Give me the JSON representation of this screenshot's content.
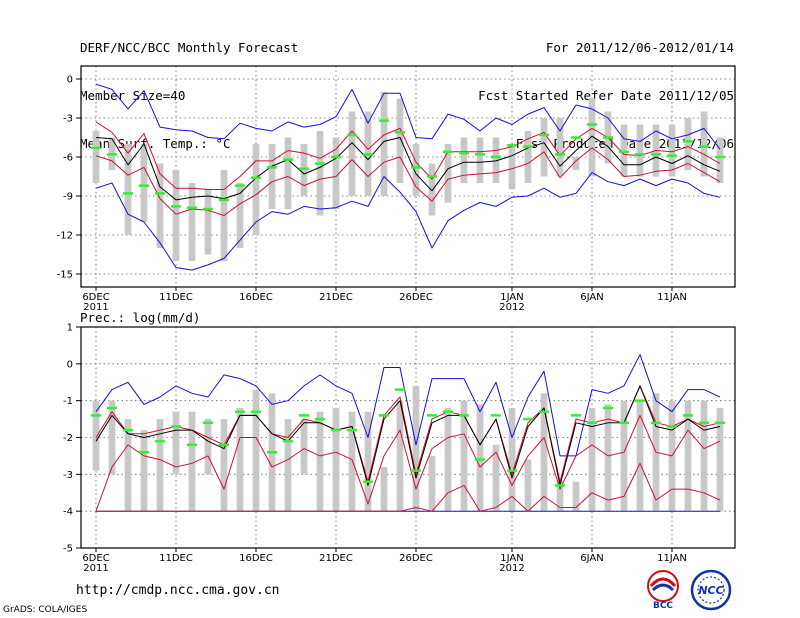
{
  "header": {
    "title": "DERF/NCC/BCC Monthly Forecast",
    "member": "Member Size=40",
    "forecast_period": "For 2011/12/06-2012/01/14",
    "fcst_started": "Fcst Started Refer Date 2011/12/05",
    "fcst_produced": "Fcst Produced Date 2011/12/06"
  },
  "footer": {
    "url": "http://cmdp.ncc.cma.gov.cn",
    "credit": "GrADS: COLA/IGES",
    "logo_bcc": "BCC",
    "logo_ncc": "NCC"
  },
  "colors": {
    "box": "#c8c8c8",
    "median": "#33ee33",
    "mean": "#000000",
    "spread": "#cc1133",
    "envelope": "#1111dd",
    "grid": "#666666"
  },
  "chart_data": [
    {
      "type": "box",
      "title": "Mean Surf. Temp.: °C",
      "xlabel": "",
      "ylabel": "",
      "ylim": [
        -16,
        1
      ],
      "yticks": [
        0,
        -3,
        -6,
        -9,
        -12,
        -15
      ],
      "xtick_labels": [
        {
          "day": 0,
          "line1": "6DEC",
          "line2": "2011"
        },
        {
          "day": 5,
          "line1": "11DEC",
          "line2": ""
        },
        {
          "day": 10,
          "line1": "16DEC",
          "line2": ""
        },
        {
          "day": 15,
          "line1": "21DEC",
          "line2": ""
        },
        {
          "day": 20,
          "line1": "26DEC",
          "line2": ""
        },
        {
          "day": 26,
          "line1": "1JAN",
          "line2": "2012"
        },
        {
          "day": 31,
          "line1": "6JAN",
          "line2": ""
        },
        {
          "day": 36,
          "line1": "11JAN",
          "line2": ""
        }
      ],
      "box_low": [
        -8.0,
        -7.0,
        -12.0,
        -11.0,
        -13.0,
        -14.0,
        -14.0,
        -13.5,
        -14.0,
        -13.0,
        -12.0,
        -10.0,
        -10.0,
        -9.0,
        -10.5,
        -10.0,
        -9.0,
        -9.0,
        -9.0,
        -8.0,
        -9.0,
        -10.5,
        -9.5,
        -8.0,
        -8.0,
        -8.0,
        -8.5,
        -8.0,
        -7.5,
        -7.5,
        -7.0,
        -7.5,
        -6.5,
        -7.5,
        -7.5,
        -7.5,
        -7.5,
        -7.0,
        -7.5,
        -8.0
      ],
      "box_high": [
        -4.0,
        -4.5,
        -5.0,
        -5.0,
        -6.5,
        -7.0,
        -8.0,
        -8.5,
        -7.0,
        -8.0,
        -5.0,
        -5.0,
        -4.5,
        -5.0,
        -4.0,
        -4.5,
        -2.5,
        -2.5,
        -1.0,
        -1.5,
        -5.0,
        -6.5,
        -5.0,
        -4.5,
        -4.5,
        -4.5,
        -5.0,
        -4.0,
        -3.0,
        -3.0,
        -6.0,
        -1.5,
        -2.5,
        -3.5,
        -3.5,
        -3.5,
        -3.5,
        -3.0,
        -2.5,
        -4.5
      ],
      "median": [
        -5.3,
        -5.8,
        -8.8,
        -8.2,
        -8.8,
        -9.8,
        -9.9,
        -10.0,
        -9.3,
        -8.2,
        -7.6,
        -6.8,
        -6.2,
        -6.9,
        -6.5,
        -6.0,
        -4.3,
        -5.8,
        -3.2,
        -4.1,
        -6.8,
        -7.5,
        -5.6,
        -5.7,
        -5.8,
        -6.0,
        -5.1,
        -5.2,
        -4.3,
        -5.8,
        -4.5,
        -3.5,
        -4.5,
        -5.6,
        -5.8,
        -5.8,
        -5.9,
        -4.8,
        -5.2,
        -6.0
      ],
      "mean": [
        -4.5,
        -4.6,
        -6.6,
        -5.0,
        -8.3,
        -9.3,
        -9.1,
        -9.0,
        -9.2,
        -8.8,
        -7.6,
        -6.7,
        -6.2,
        -7.3,
        -6.8,
        -6.1,
        -4.9,
        -6.2,
        -4.8,
        -4.5,
        -7.3,
        -8.6,
        -6.9,
        -6.4,
        -6.4,
        -6.3,
        -5.9,
        -5.3,
        -4.9,
        -6.7,
        -5.5,
        -4.4,
        -5.2,
        -6.6,
        -6.6,
        -6.0,
        -6.5,
        -5.9,
        -6.6,
        -7.1
      ],
      "spread_upper": [
        -3.3,
        -4.1,
        -5.7,
        -4.2,
        -7.3,
        -8.4,
        -8.4,
        -8.5,
        -8.5,
        -7.5,
        -6.3,
        -6.3,
        -5.5,
        -5.7,
        -6.1,
        -5.4,
        -4.0,
        -5.4,
        -4.3,
        -3.8,
        -6.4,
        -7.7,
        -5.6,
        -5.6,
        -5.6,
        -5.5,
        -5.2,
        -4.6,
        -4.1,
        -5.9,
        -4.6,
        -3.8,
        -4.5,
        -5.8,
        -5.9,
        -5.5,
        -5.6,
        -5.2,
        -5.8,
        -6.5
      ],
      "spread_lower": [
        -5.9,
        -6.3,
        -7.4,
        -6.8,
        -9.2,
        -10.4,
        -10.0,
        -10.1,
        -10.5,
        -9.6,
        -8.9,
        -7.9,
        -7.5,
        -8.2,
        -7.7,
        -7.5,
        -6.2,
        -7.5,
        -6.4,
        -6.0,
        -8.3,
        -9.4,
        -7.7,
        -7.4,
        -7.3,
        -7.2,
        -6.9,
        -6.5,
        -5.6,
        -7.6,
        -6.3,
        -5.3,
        -6.2,
        -7.5,
        -7.4,
        -7.1,
        -7.0,
        -6.5,
        -7.2,
        -7.9
      ],
      "envelope_upper": [
        -0.4,
        -0.8,
        -2.3,
        -0.9,
        -3.7,
        -3.9,
        -4.0,
        -4.5,
        -4.6,
        -3.4,
        -3.8,
        -4.0,
        -3.3,
        -3.7,
        -3.5,
        -2.9,
        -0.8,
        -3.4,
        -1.1,
        -1.1,
        -4.5,
        -4.6,
        -2.7,
        -3.1,
        -4.0,
        -3.0,
        -3.5,
        -2.7,
        -2.2,
        -4.0,
        -2.0,
        -2.3,
        -3.0,
        -4.6,
        -4.8,
        -4.0,
        -4.6,
        -4.3,
        -3.8,
        -5.4
      ],
      "envelope_lower": [
        -8.4,
        -8.0,
        -10.4,
        -11.0,
        -12.6,
        -14.5,
        -14.7,
        -14.3,
        -13.8,
        -12.4,
        -11.0,
        -10.2,
        -10.4,
        -9.8,
        -10.0,
        -9.9,
        -9.4,
        -9.8,
        -7.5,
        -8.7,
        -10.2,
        -13.0,
        -10.9,
        -10.1,
        -9.5,
        -9.8,
        -9.1,
        -9.0,
        -8.4,
        -9.1,
        -8.8,
        -7.2,
        -7.9,
        -8.2,
        -7.7,
        -8.2,
        -7.7,
        -8.0,
        -8.8,
        -9.1
      ]
    },
    {
      "type": "box",
      "title": "Prec.: log(mm/d)",
      "xlabel": "",
      "ylabel": "",
      "ylim": [
        -5,
        1
      ],
      "yticks": [
        1,
        0,
        -1,
        -2,
        -3,
        -4,
        -5
      ],
      "xtick_labels": [
        {
          "day": 0,
          "line1": "6DEC",
          "line2": "2011"
        },
        {
          "day": 5,
          "line1": "11DEC",
          "line2": ""
        },
        {
          "day": 10,
          "line1": "16DEC",
          "line2": ""
        },
        {
          "day": 15,
          "line1": "21DEC",
          "line2": ""
        },
        {
          "day": 20,
          "line1": "26DEC",
          "line2": ""
        },
        {
          "day": 26,
          "line1": "1JAN",
          "line2": "2012"
        },
        {
          "day": 31,
          "line1": "6JAN",
          "line2": ""
        },
        {
          "day": 36,
          "line1": "11JAN",
          "line2": ""
        }
      ],
      "box_low": [
        -2.9,
        -3.0,
        -4.0,
        -4.0,
        -4.0,
        -3.0,
        -4.0,
        -3.0,
        -4.0,
        -4.0,
        -4.0,
        -4.0,
        -4.0,
        -3.0,
        -4.0,
        -4.0,
        -4.0,
        -4.0,
        -4.0,
        -4.0,
        -4.0,
        -4.0,
        -4.0,
        -4.0,
        -4.0,
        -4.0,
        -4.0,
        -4.0,
        -4.0,
        -4.0,
        -4.0,
        -4.0,
        -4.0,
        -4.0,
        -4.0,
        -4.0,
        -4.0,
        -4.0,
        -4.0,
        -4.0
      ],
      "box_high": [
        -1.0,
        -1.0,
        -1.5,
        -1.8,
        -1.5,
        -1.3,
        -1.3,
        -1.5,
        -1.5,
        -1.2,
        -0.7,
        -0.8,
        -1.5,
        -1.5,
        -1.3,
        -1.2,
        -1.3,
        -1.3,
        -2.8,
        -1.0,
        -0.6,
        -2.5,
        -1.2,
        -1.0,
        -1.1,
        -2.2,
        -1.2,
        -2.6,
        -0.8,
        -3.2,
        -3.2,
        -1.2,
        -1.1,
        -1.0,
        -1.0,
        -0.8,
        -1.0,
        -1.0,
        -1.0,
        -1.2
      ],
      "median": [
        -1.4,
        -1.2,
        -1.8,
        -2.4,
        -2.1,
        -1.7,
        -2.2,
        -1.6,
        -2.2,
        -1.3,
        -1.3,
        -2.4,
        -2.1,
        -1.4,
        -1.5,
        -1.8,
        -1.8,
        -3.2,
        -1.4,
        -0.7,
        -2.9,
        -1.4,
        -1.3,
        -1.4,
        -2.6,
        -1.4,
        -2.9,
        -1.5,
        -1.3,
        -3.3,
        -1.4,
        -1.6,
        -1.2,
        -1.6,
        -1.0,
        -1.6,
        -1.7,
        -1.4,
        -1.6,
        -1.6
      ],
      "mean": [
        -2.1,
        -1.4,
        -1.9,
        -2.0,
        -1.9,
        -1.8,
        -1.8,
        -2.1,
        -2.3,
        -1.4,
        -1.4,
        -1.9,
        -2.1,
        -1.6,
        -1.6,
        -1.8,
        -1.7,
        -3.3,
        -1.5,
        -1.0,
        -3.1,
        -1.6,
        -1.4,
        -1.4,
        -2.2,
        -1.5,
        -3.1,
        -1.7,
        -1.2,
        -3.3,
        -1.6,
        -1.7,
        -1.6,
        -1.6,
        -0.6,
        -1.7,
        -1.8,
        -1.5,
        -1.8,
        -1.7
      ],
      "spread_upper": [
        -2.0,
        -1.3,
        -1.9,
        -1.9,
        -1.8,
        -1.7,
        -1.8,
        -2.0,
        -2.2,
        -1.4,
        -1.4,
        -1.9,
        -2.0,
        -1.5,
        -1.6,
        -1.8,
        -1.7,
        -3.2,
        -1.4,
        -0.9,
        -3.0,
        -1.5,
        -1.3,
        -1.4,
        -2.2,
        -1.5,
        -3.0,
        -1.6,
        -1.2,
        -3.2,
        -1.5,
        -1.6,
        -1.5,
        -1.6,
        -0.6,
        -1.6,
        -1.7,
        -1.5,
        -1.7,
        -1.6
      ],
      "spread_lower": [
        -4.0,
        -2.8,
        -2.2,
        -2.5,
        -2.6,
        -2.8,
        -2.7,
        -2.5,
        -3.4,
        -2.0,
        -2.0,
        -2.8,
        -2.6,
        -2.3,
        -2.5,
        -2.4,
        -2.6,
        -3.8,
        -2.5,
        -1.8,
        -3.4,
        -2.3,
        -2.0,
        -1.9,
        -2.8,
        -2.4,
        -3.3,
        -2.5,
        -2.0,
        -3.4,
        -2.5,
        -2.2,
        -2.5,
        -2.4,
        -1.4,
        -2.4,
        -2.5,
        -1.8,
        -2.3,
        -2.1
      ],
      "spread_bottom": [
        -4.0,
        -4.0,
        -4.0,
        -4.0,
        -4.0,
        -4.0,
        -4.0,
        -4.0,
        -4.0,
        -4.0,
        -4.0,
        -4.0,
        -4.0,
        -4.0,
        -4.0,
        -4.0,
        -4.0,
        -4.0,
        -4.0,
        -4.0,
        -3.9,
        -4.0,
        -3.5,
        -3.3,
        -4.0,
        -3.9,
        -3.6,
        -4.0,
        -3.6,
        -3.9,
        -3.9,
        -3.5,
        -3.7,
        -3.6,
        -2.7,
        -3.7,
        -3.4,
        -3.4,
        -3.5,
        -3.7
      ],
      "envelope_upper": [
        -1.3,
        -0.7,
        -0.5,
        -1.1,
        -0.9,
        -0.6,
        -0.8,
        -0.9,
        -0.3,
        -0.4,
        -0.6,
        -1.1,
        -1.0,
        -0.6,
        -0.3,
        -0.6,
        -0.8,
        -2.0,
        -0.1,
        -0.1,
        -2.2,
        -0.4,
        -0.4,
        -0.4,
        -1.3,
        -0.5,
        -2.0,
        -0.9,
        -0.2,
        -2.5,
        -2.5,
        -0.7,
        -0.8,
        -0.6,
        0.25,
        -1.0,
        -1.3,
        -0.7,
        -0.7,
        -0.9
      ],
      "envelope_lower": [
        -4.0,
        -4.0,
        -4.0,
        -4.0,
        -4.0,
        -4.0,
        -4.0,
        -4.0,
        -4.0,
        -4.0,
        -4.0,
        -4.0,
        -4.0,
        -4.0,
        -4.0,
        -4.0,
        -4.0,
        -4.0,
        -4.0,
        -4.0,
        -4.0,
        -4.0,
        -4.0,
        -4.0,
        -4.0,
        -4.0,
        -4.0,
        -4.0,
        -4.0,
        -4.0,
        -4.0,
        -4.0,
        -4.0,
        -4.0,
        -4.0,
        -4.0,
        -4.0,
        -4.0,
        -4.0,
        -4.0
      ]
    }
  ]
}
